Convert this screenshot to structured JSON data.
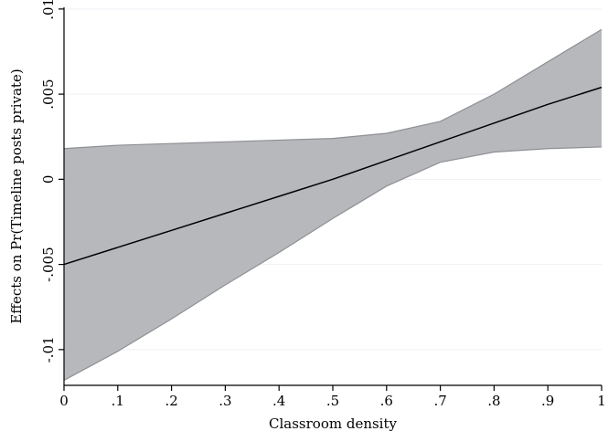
{
  "chart_data": {
    "type": "area",
    "title": "",
    "xlabel": "Classroom density",
    "ylabel": "Effects on Pr(Timeline posts private)",
    "xlim": [
      0,
      1
    ],
    "ylim": [
      -0.0121,
      0.0101
    ],
    "grid": true,
    "x_ticks": [
      {
        "value": 0,
        "label": "0"
      },
      {
        "value": 0.1,
        "label": ".1"
      },
      {
        "value": 0.2,
        "label": ".2"
      },
      {
        "value": 0.3,
        "label": ".3"
      },
      {
        "value": 0.4,
        "label": ".4"
      },
      {
        "value": 0.5,
        "label": ".5"
      },
      {
        "value": 0.6,
        "label": ".6"
      },
      {
        "value": 0.7,
        "label": ".7"
      },
      {
        "value": 0.8,
        "label": ".8"
      },
      {
        "value": 0.9,
        "label": ".9"
      },
      {
        "value": 1,
        "label": "1"
      }
    ],
    "y_ticks": [
      {
        "value": -0.01,
        "label": "-.01"
      },
      {
        "value": -0.005,
        "label": "-.005"
      },
      {
        "value": 0,
        "label": "0"
      },
      {
        "value": 0.005,
        "label": ".005"
      },
      {
        "value": 0.01,
        "label": ".01"
      }
    ],
    "x": [
      0,
      0.1,
      0.2,
      0.3,
      0.4,
      0.5,
      0.6,
      0.7,
      0.8,
      0.9,
      1
    ],
    "series": [
      {
        "role": "estimate",
        "values": [
          -0.005,
          -0.004,
          -0.003,
          -0.002,
          -0.001,
          0.0,
          0.0011,
          0.0022,
          0.0033,
          0.0044,
          0.0054
        ]
      },
      {
        "role": "upper",
        "values": [
          0.0018,
          0.002,
          0.0021,
          0.0022,
          0.0023,
          0.0024,
          0.0027,
          0.0034,
          0.005,
          0.0069,
          0.0088
        ]
      },
      {
        "role": "lower",
        "values": [
          -0.0118,
          -0.0101,
          -0.0082,
          -0.0062,
          -0.0043,
          -0.0023,
          -0.0004,
          0.001,
          0.0016,
          0.0018,
          0.0019
        ]
      }
    ],
    "colors": {
      "band_fill": "#b6b8bc",
      "band_edge": "#8e9094",
      "line": "#000000",
      "grid": "#eef1f5",
      "axis": "#000000"
    }
  }
}
